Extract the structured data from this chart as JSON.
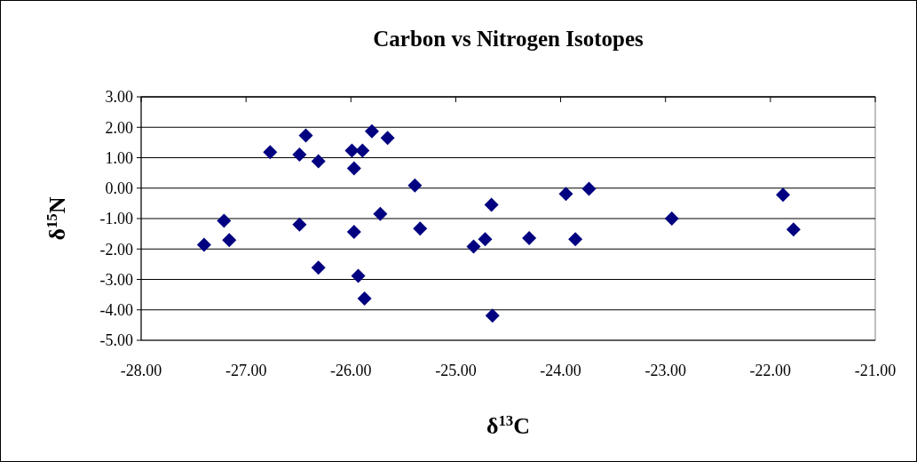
{
  "chart_data": {
    "type": "scatter",
    "title": "Carbon vs Nitrogen Isotopes",
    "xlabel": "δ$^{13}$C",
    "ylabel": "δ$^{15}$N",
    "series": [
      {
        "color": "#000080",
        "x": [
          -27.4,
          -27.21,
          -27.16,
          -26.77,
          -26.49,
          -26.43,
          -26.31,
          -26.49,
          -26.31,
          -25.99,
          -25.97,
          -25.89,
          -25.8,
          -25.65,
          -25.39,
          -25.72,
          -25.97,
          -25.93,
          -25.87,
          -25.34,
          -24.83,
          -24.72,
          -24.66,
          -24.65,
          -24.3,
          -23.95,
          -23.86,
          -23.73,
          -22.94,
          -21.88,
          -21.78
        ],
        "values": [
          -1.86,
          -1.07,
          -1.71,
          1.18,
          1.1,
          1.73,
          0.88,
          -1.2,
          -2.61,
          1.23,
          0.65,
          1.23,
          1.87,
          1.65,
          0.09,
          -0.85,
          -1.44,
          -2.88,
          -3.63,
          -1.33,
          -1.92,
          -1.68,
          -0.55,
          -4.19,
          -1.64,
          -0.19,
          -1.68,
          -0.02,
          -1.0,
          -0.22,
          -1.36
        ]
      }
    ],
    "xlim": [
      -28,
      -21
    ],
    "xticks": [
      {
        "value": -28,
        "label": "-28.00"
      },
      {
        "value": -27,
        "label": "-27.00"
      },
      {
        "value": -26,
        "label": "-26.00"
      },
      {
        "value": -25,
        "label": "-25.00"
      },
      {
        "value": -24,
        "label": "-24.00"
      },
      {
        "value": -23,
        "label": "-23.00"
      },
      {
        "value": -22,
        "label": "-22.00"
      },
      {
        "value": -21,
        "label": "-21.00"
      }
    ],
    "ylim": [
      -5,
      3
    ],
    "yticks": [
      {
        "value": -5,
        "label": "-5.00"
      },
      {
        "value": -4,
        "label": "-4.00"
      },
      {
        "value": -3,
        "label": "-3.00"
      },
      {
        "value": -2,
        "label": "-2.00"
      },
      {
        "value": -1,
        "label": "-1.00"
      },
      {
        "value": 0,
        "label": "0.00"
      },
      {
        "value": 1,
        "label": "1.00"
      },
      {
        "value": 2,
        "label": "2.00"
      },
      {
        "value": 3,
        "label": "3.00"
      }
    ],
    "grid": "y",
    "marker": "diamond"
  }
}
